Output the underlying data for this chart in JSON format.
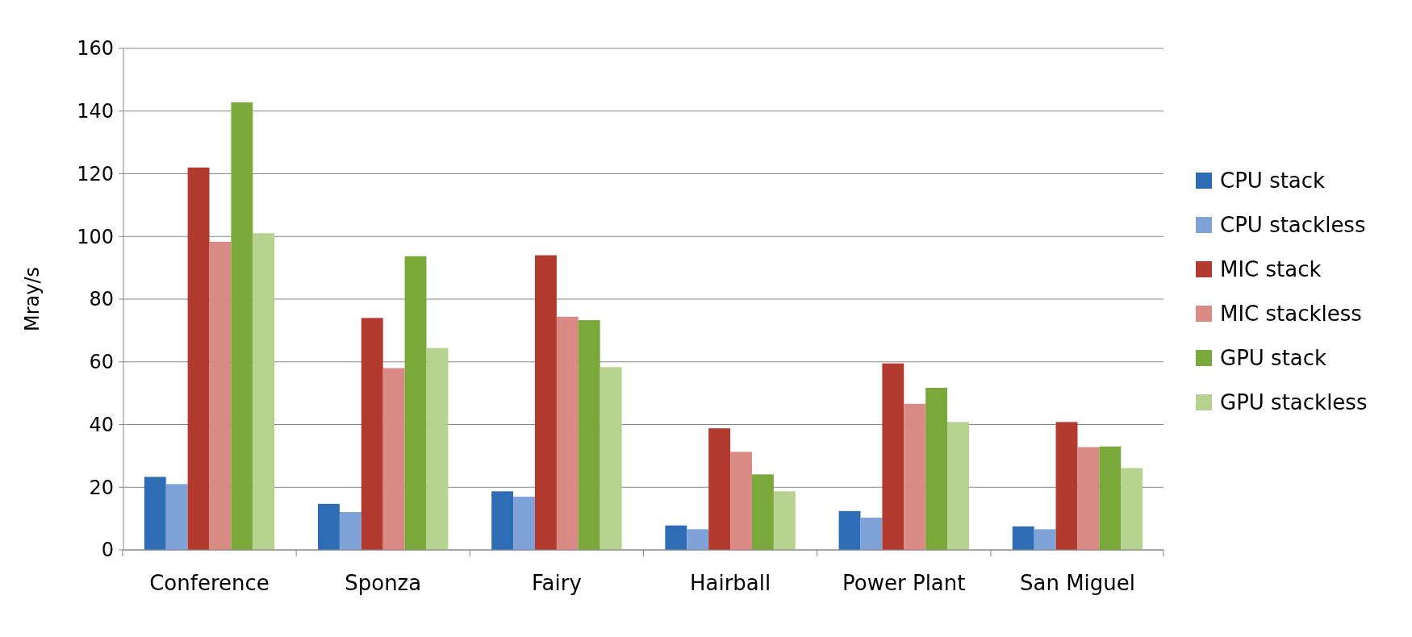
{
  "chart_data": {
    "type": "bar",
    "ylabel": "Mray/s",
    "categories": [
      "Conference",
      "Sponza",
      "Fairy",
      "Hairball",
      "Power Plant",
      "San Miguel"
    ],
    "series": [
      {
        "name": "CPU stack",
        "color": "#2e6db5",
        "values": [
          23.3,
          14.7,
          18.7,
          7.8,
          12.4,
          7.5
        ]
      },
      {
        "name": "CPU stackless",
        "color": "#7fa3d8",
        "values": [
          21,
          12.1,
          17,
          6.6,
          10.3,
          6.6
        ]
      },
      {
        "name": "MIC stack",
        "color": "#b33a2e",
        "values": [
          122,
          74,
          94,
          38.8,
          59.5,
          40.8
        ]
      },
      {
        "name": "MIC stackless",
        "color": "#d98a85",
        "values": [
          98.3,
          58,
          74.4,
          31.3,
          46.6,
          32.8
        ]
      },
      {
        "name": "GPU stack",
        "color": "#7aa83a",
        "values": [
          142.8,
          93.7,
          73.3,
          24.1,
          51.7,
          33
        ]
      },
      {
        "name": "GPU stackless",
        "color": "#b5d28e",
        "values": [
          101,
          64.4,
          58.3,
          18.7,
          40.8,
          26.1
        ]
      }
    ],
    "ylim": [
      0,
      160
    ],
    "yticks": [
      0,
      20,
      40,
      60,
      80,
      100,
      120,
      140,
      160
    ],
    "grid": "y",
    "legend": "right"
  }
}
